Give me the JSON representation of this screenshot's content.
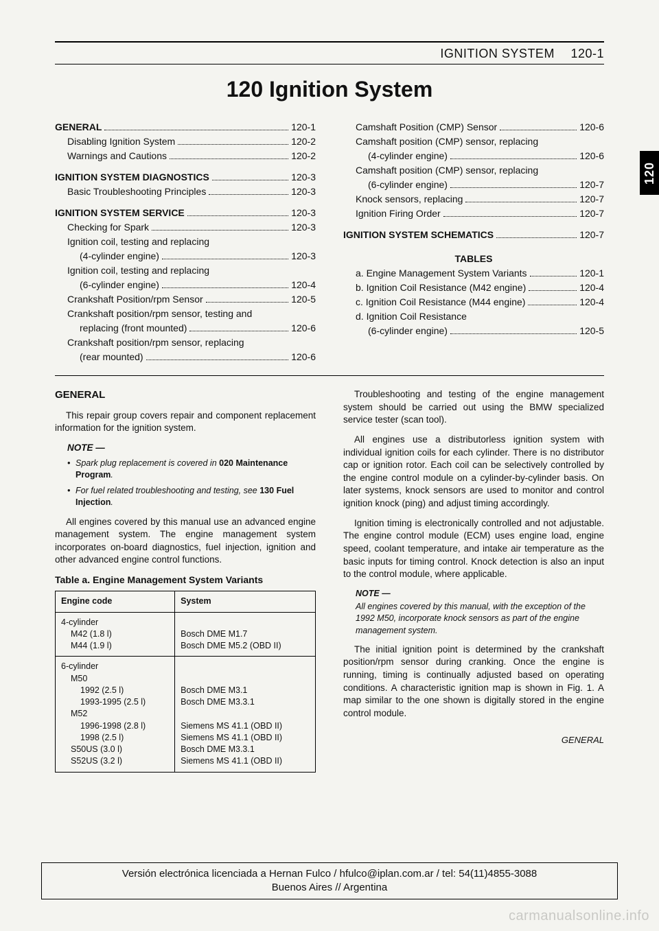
{
  "runningHead": {
    "section": "IGNITION SYSTEM",
    "pageNum": "120-1"
  },
  "chapterTitle": "120 Ignition System",
  "sideTab": "120",
  "toc": {
    "left": [
      {
        "type": "heading",
        "label": "GENERAL",
        "page": "120-1"
      },
      {
        "type": "sub",
        "label": "Disabling Ignition System",
        "page": "120-2"
      },
      {
        "type": "sub",
        "label": "Warnings and Cautions",
        "page": "120-2"
      },
      {
        "type": "spacer"
      },
      {
        "type": "heading",
        "label": "IGNITION SYSTEM DIAGNOSTICS",
        "page": "120-3"
      },
      {
        "type": "sub",
        "label": "Basic Troubleshooting Principles",
        "page": "120-3"
      },
      {
        "type": "spacer"
      },
      {
        "type": "heading",
        "label": "IGNITION SYSTEM SERVICE",
        "page": "120-3"
      },
      {
        "type": "sub",
        "label": "Checking for Spark",
        "page": "120-3"
      },
      {
        "type": "sub",
        "label": "Ignition coil, testing and replacing",
        "page": ""
      },
      {
        "type": "sub2",
        "label": "(4-cylinder engine)",
        "page": "120-3"
      },
      {
        "type": "sub",
        "label": "Ignition coil, testing and replacing",
        "page": ""
      },
      {
        "type": "sub2",
        "label": "(6-cylinder engine)",
        "page": "120-4"
      },
      {
        "type": "sub",
        "label": "Crankshaft Position/rpm Sensor",
        "page": "120-5"
      },
      {
        "type": "sub",
        "label": "Crankshaft position/rpm sensor, testing and",
        "page": ""
      },
      {
        "type": "sub2",
        "label": "replacing (front mounted)",
        "page": "120-6"
      },
      {
        "type": "sub",
        "label": "Crankshaft position/rpm sensor, replacing",
        "page": ""
      },
      {
        "type": "sub2",
        "label": "(rear mounted)",
        "page": "120-6"
      }
    ],
    "right": [
      {
        "type": "sub",
        "label": "Camshaft Position (CMP) Sensor",
        "page": "120-6"
      },
      {
        "type": "sub",
        "label": "Camshaft position (CMP) sensor, replacing",
        "page": ""
      },
      {
        "type": "sub2",
        "label": "(4-cylinder engine)",
        "page": "120-6"
      },
      {
        "type": "sub",
        "label": "Camshaft position (CMP) sensor, replacing",
        "page": ""
      },
      {
        "type": "sub2",
        "label": "(6-cylinder engine)",
        "page": "120-7"
      },
      {
        "type": "sub",
        "label": "Knock sensors, replacing",
        "page": "120-7"
      },
      {
        "type": "sub",
        "label": "Ignition Firing Order",
        "page": "120-7"
      },
      {
        "type": "spacer"
      },
      {
        "type": "heading",
        "label": "IGNITION SYSTEM SCHEMATICS",
        "page": "120-7"
      },
      {
        "type": "spacer"
      },
      {
        "type": "tablesTitle",
        "label": "TABLES"
      },
      {
        "type": "sub",
        "label": "a. Engine Management System Variants",
        "page": "120-1"
      },
      {
        "type": "sub",
        "label": "b. Ignition Coil Resistance (M42 engine)",
        "page": "120-4"
      },
      {
        "type": "sub",
        "label": "c. Ignition Coil Resistance (M44 engine)",
        "page": "120-4"
      },
      {
        "type": "sub",
        "label": "d. Ignition Coil Resistance",
        "page": ""
      },
      {
        "type": "sub2",
        "label": "(6-cylinder engine)",
        "page": "120-5"
      }
    ]
  },
  "body": {
    "left": {
      "heading": "GENERAL",
      "p1": "This repair group covers repair and component replacement information for the ignition system.",
      "noteTitle": "NOTE —",
      "noteItems": [
        {
          "pre": "Spark plug replacement is covered in ",
          "bold": "020 Maintenance Program",
          "post": "."
        },
        {
          "pre": "For fuel related troubleshooting and testing, see ",
          "bold": "130 Fuel Injection",
          "post": "."
        }
      ],
      "p2": "All engines covered by this manual use an advanced engine management system. The engine management system incorporates on-board diagnostics, fuel injection, ignition and other advanced engine control functions.",
      "tableCaption": "Table a. Engine Management System Variants",
      "table": {
        "headers": [
          "Engine code",
          "System"
        ],
        "rows": [
          {
            "engineGroup": "4-cylinder",
            "lines": [
              {
                "code": "M42 (1.8 l)",
                "sys": "Bosch DME M1.7"
              },
              {
                "code": "M44 (1.9 l)",
                "sys": "Bosch DME M5.2 (OBD II)"
              }
            ]
          },
          {
            "engineGroup": "6-cylinder",
            "lines": [
              {
                "code": "M50",
                "sys": ""
              },
              {
                "code": "1992 (2.5 l)",
                "sys": "Bosch DME M3.1",
                "indent": true
              },
              {
                "code": "1993-1995 (2.5 l)",
                "sys": "Bosch DME M3.3.1",
                "indent": true
              },
              {
                "code": "M52",
                "sys": ""
              },
              {
                "code": "1996-1998 (2.8 l)",
                "sys": "Siemens MS 41.1 (OBD II)",
                "indent": true
              },
              {
                "code": "1998 (2.5 l)",
                "sys": "Siemens MS 41.1 (OBD II)",
                "indent": true
              },
              {
                "code": "S50US (3.0 l)",
                "sys": "Bosch DME M3.3.1"
              },
              {
                "code": "S52US (3.2 l)",
                "sys": "Siemens MS 41.1 (OBD II)"
              }
            ]
          }
        ]
      }
    },
    "right": {
      "p1": "Troubleshooting and testing of the engine management system should be carried out using the BMW specialized service tester (scan tool).",
      "p2": "All engines use a distributorless ignition system with individual ignition coils for each cylinder. There is no distributor cap or ignition rotor. Each coil can be selectively controlled by the engine control module on a cylinder-by-cylinder basis. On later systems, knock sensors are used to monitor and control ignition knock (ping) and adjust timing accordingly.",
      "p3": "Ignition timing is electronically controlled and not adjustable. The engine control module (ECM) uses engine load, engine speed, coolant temperature, and intake air temperature as the basic inputs for timing control. Knock detection is also an input to the control module, where applicable.",
      "noteTitle": "NOTE —",
      "noteText": "All engines covered by this manual, with the exception of the 1992 M50, incorporate knock sensors as part of the engine management system.",
      "p4": "The initial ignition point is determined by the crankshaft position/rpm sensor during cranking. Once the engine is running, timing is continually adjusted based on operating conditions. A characteristic ignition map is shown in Fig. 1. A map similar to the one shown is digitally stored in the engine control module.",
      "footerSec": "GENERAL"
    }
  },
  "license": {
    "line1": "Versión electrónica licenciada a Hernan Fulco / hfulco@iplan.com.ar / tel: 54(11)4855-3088",
    "line2": "Buenos Aires // Argentina"
  },
  "watermark": "carmanualsonline.info"
}
